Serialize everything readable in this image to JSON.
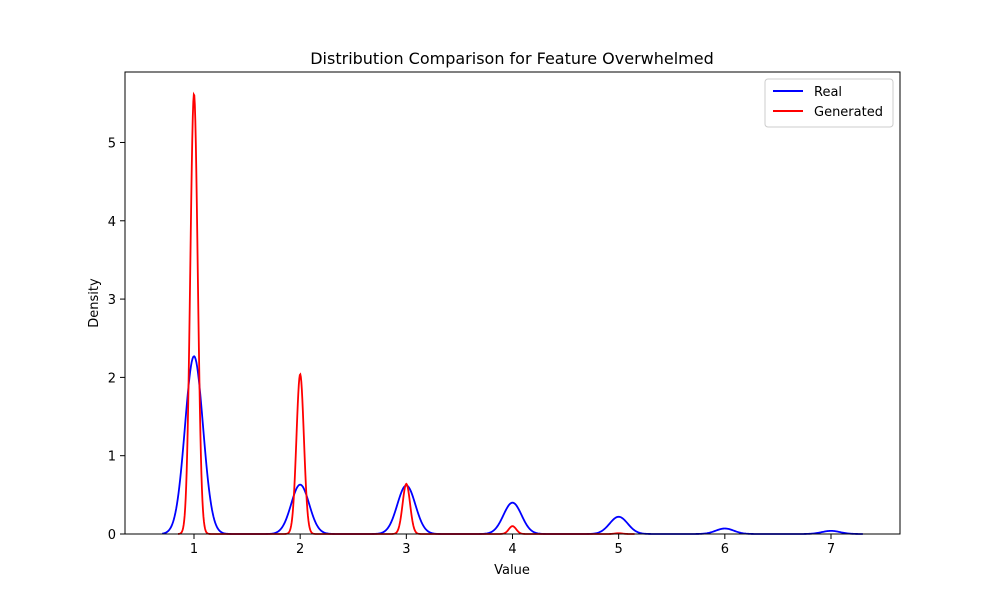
{
  "chart_data": {
    "type": "line",
    "title": "Distribution Comparison for Feature Overwhelmed",
    "xlabel": "Value",
    "ylabel": "Density",
    "xlim": [
      0.35,
      7.65
    ],
    "ylim": [
      0,
      5.9
    ],
    "xticks": [
      1,
      2,
      3,
      4,
      5,
      6,
      7
    ],
    "yticks": [
      0,
      1,
      2,
      3,
      4,
      5
    ],
    "grid": false,
    "legend_position": "top-right",
    "series": [
      {
        "name": "Real",
        "color": "#0000ff",
        "x_range": [
          0.7,
          7.3
        ],
        "components": [
          {
            "center": 1,
            "height": 2.27,
            "sigma": 0.085
          },
          {
            "center": 2,
            "height": 0.63,
            "sigma": 0.085
          },
          {
            "center": 3,
            "height": 0.62,
            "sigma": 0.085
          },
          {
            "center": 4,
            "height": 0.4,
            "sigma": 0.085
          },
          {
            "center": 5,
            "height": 0.22,
            "sigma": 0.085
          },
          {
            "center": 6,
            "height": 0.07,
            "sigma": 0.085
          },
          {
            "center": 7,
            "height": 0.04,
            "sigma": 0.085
          }
        ]
      },
      {
        "name": "Generated",
        "color": "#ff0000",
        "x_range": [
          0.85,
          5.15
        ],
        "components": [
          {
            "center": 1,
            "height": 5.62,
            "sigma": 0.035
          },
          {
            "center": 2,
            "height": 2.04,
            "sigma": 0.035
          },
          {
            "center": 3,
            "height": 0.64,
            "sigma": 0.035
          },
          {
            "center": 4,
            "height": 0.1,
            "sigma": 0.035
          },
          {
            "center": 5,
            "height": 0.01,
            "sigma": 0.035
          }
        ]
      }
    ]
  }
}
